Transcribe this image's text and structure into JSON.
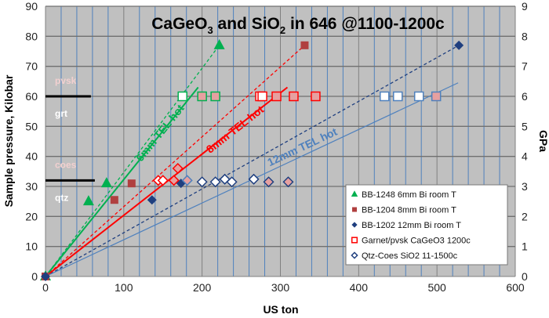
{
  "chart_data": {
    "type": "scatter",
    "title": "CaGeO3 and SiO2 in 646 @1100-1200c",
    "title_parts": {
      "a": "CaGeO",
      "a_sub": "3",
      "b": " and SiO",
      "b_sub": "2",
      "c": " in 646 @1100-1200c"
    },
    "xlabel": "US ton",
    "ylabel": "Sample pressure, Kilobar",
    "y2label": "GPa",
    "xlim": [
      0,
      600
    ],
    "ylim": [
      0,
      90
    ],
    "y2lim": [
      0,
      9
    ],
    "xticks": [
      "0",
      "100",
      "200",
      "300",
      "400",
      "500",
      "600"
    ],
    "yticks": [
      "0",
      "10",
      "20",
      "30",
      "40",
      "50",
      "60",
      "70",
      "80",
      "90"
    ],
    "y2ticks": [
      "0",
      "1",
      "2",
      "3",
      "4",
      "5",
      "6",
      "7",
      "8",
      "9"
    ],
    "grid": true,
    "legend_placement": "bottom-right",
    "colors": {
      "plot_bg": "#c0c0c0",
      "green": "#00b050",
      "red": "#ff0000",
      "darkred": "#b04040",
      "navy": "#1f3f7f",
      "blue": "#4f81bd",
      "pink": "#e6a0a0"
    },
    "series": [
      {
        "name": "BB-1248 6mm Bi room T",
        "marker": "triangle",
        "color": "#00b050",
        "points": [
          [
            0,
            0
          ],
          [
            55,
            25
          ],
          [
            78,
            31
          ],
          [
            222,
            77
          ]
        ]
      },
      {
        "name": "BB-1204 8mm  Bi room T",
        "marker": "square",
        "color": "#b04040",
        "points": [
          [
            0,
            0
          ],
          [
            88,
            25.5
          ],
          [
            110,
            31
          ],
          [
            331,
            77
          ]
        ]
      },
      {
        "name": "BB-1202 12mm Bi room T",
        "marker": "diamond",
        "color": "#1f3f7f",
        "points": [
          [
            0,
            0
          ],
          [
            136,
            25.5
          ],
          [
            173,
            31
          ],
          [
            528,
            77
          ]
        ]
      },
      {
        "name": "Garnet/pvsk CaGeO3 1200c",
        "marker": "open-square",
        "color": "#ff0000",
        "points": [
          [
            175,
            60,
            "white",
            "#00b050"
          ],
          [
            200,
            60,
            "pink",
            "#00b050"
          ],
          [
            217,
            60,
            "pink",
            "#00b050"
          ],
          [
            274,
            60,
            "white",
            "#ff0000"
          ],
          [
            277,
            60,
            "white",
            "#ff0000"
          ],
          [
            295,
            60,
            "pink",
            "#ff0000"
          ],
          [
            317,
            60,
            "pink",
            "#ff0000"
          ],
          [
            345,
            60,
            "pink",
            "#ff0000"
          ],
          [
            433,
            60,
            "white",
            "#4f81bd"
          ],
          [
            450,
            60,
            "white",
            "#4f81bd"
          ],
          [
            477,
            60,
            "white",
            "#4f81bd"
          ],
          [
            499,
            60,
            "pink",
            "#4f81bd"
          ]
        ]
      },
      {
        "name": "Qtz-Coes SiO2 11-1500c",
        "marker": "open-diamond",
        "color": "#1f3f7f",
        "points": [
          [
            144,
            32,
            "white",
            "#ff0000"
          ],
          [
            150,
            32,
            "white",
            "#ff0000"
          ],
          [
            164,
            32,
            "pink",
            "#ff0000"
          ],
          [
            169,
            36,
            "pink",
            "#ff0000"
          ],
          [
            181,
            32,
            "pink",
            "#4f81bd"
          ],
          [
            200,
            31.5,
            "white",
            "#1f3f7f"
          ],
          [
            217,
            31.5,
            "white",
            "#1f3f7f"
          ],
          [
            229,
            32.4,
            "white",
            "#1f3f7f"
          ],
          [
            238,
            31.5,
            "white",
            "#1f3f7f"
          ],
          [
            266,
            32.4,
            "white",
            "#1f3f7f"
          ],
          [
            285,
            31.5,
            "pink",
            "#1f3f7f"
          ],
          [
            310,
            31.5,
            "pink",
            "#1f3f7f"
          ]
        ]
      }
    ],
    "fit_lines": [
      {
        "color": "#00b050",
        "dash": true,
        "from": [
          0,
          0
        ],
        "to": [
          222,
          77
        ]
      },
      {
        "color": "#ff0000",
        "dash": true,
        "from": [
          0,
          0
        ],
        "to": [
          331,
          77
        ]
      },
      {
        "color": "#1f3f7f",
        "dash": true,
        "from": [
          0,
          0
        ],
        "to": [
          528,
          77
        ]
      },
      {
        "label": "6mm TEL hot",
        "color": "#00b050",
        "dash": false,
        "from": [
          0,
          0
        ],
        "to": [
          195,
          63
        ],
        "label_at": [
          150,
          47
        ]
      },
      {
        "label": "8mm TEL hot",
        "color": "#ff0000",
        "dash": false,
        "from": [
          0,
          0
        ],
        "to": [
          309,
          63
        ],
        "label_at": [
          245,
          48
        ]
      },
      {
        "label": "12mm TEL hot",
        "color": "#4f81bd",
        "dash": false,
        "from": [
          0,
          0
        ],
        "to": [
          527,
          64.5
        ],
        "label_at": [
          330,
          42
        ]
      }
    ],
    "phase_boundaries": [
      {
        "y": 60,
        "x_end": 58,
        "above": "pvsk",
        "below": "grt"
      },
      {
        "y": 32,
        "x_end": 63,
        "above": "coes",
        "below": "qtz"
      }
    ]
  }
}
